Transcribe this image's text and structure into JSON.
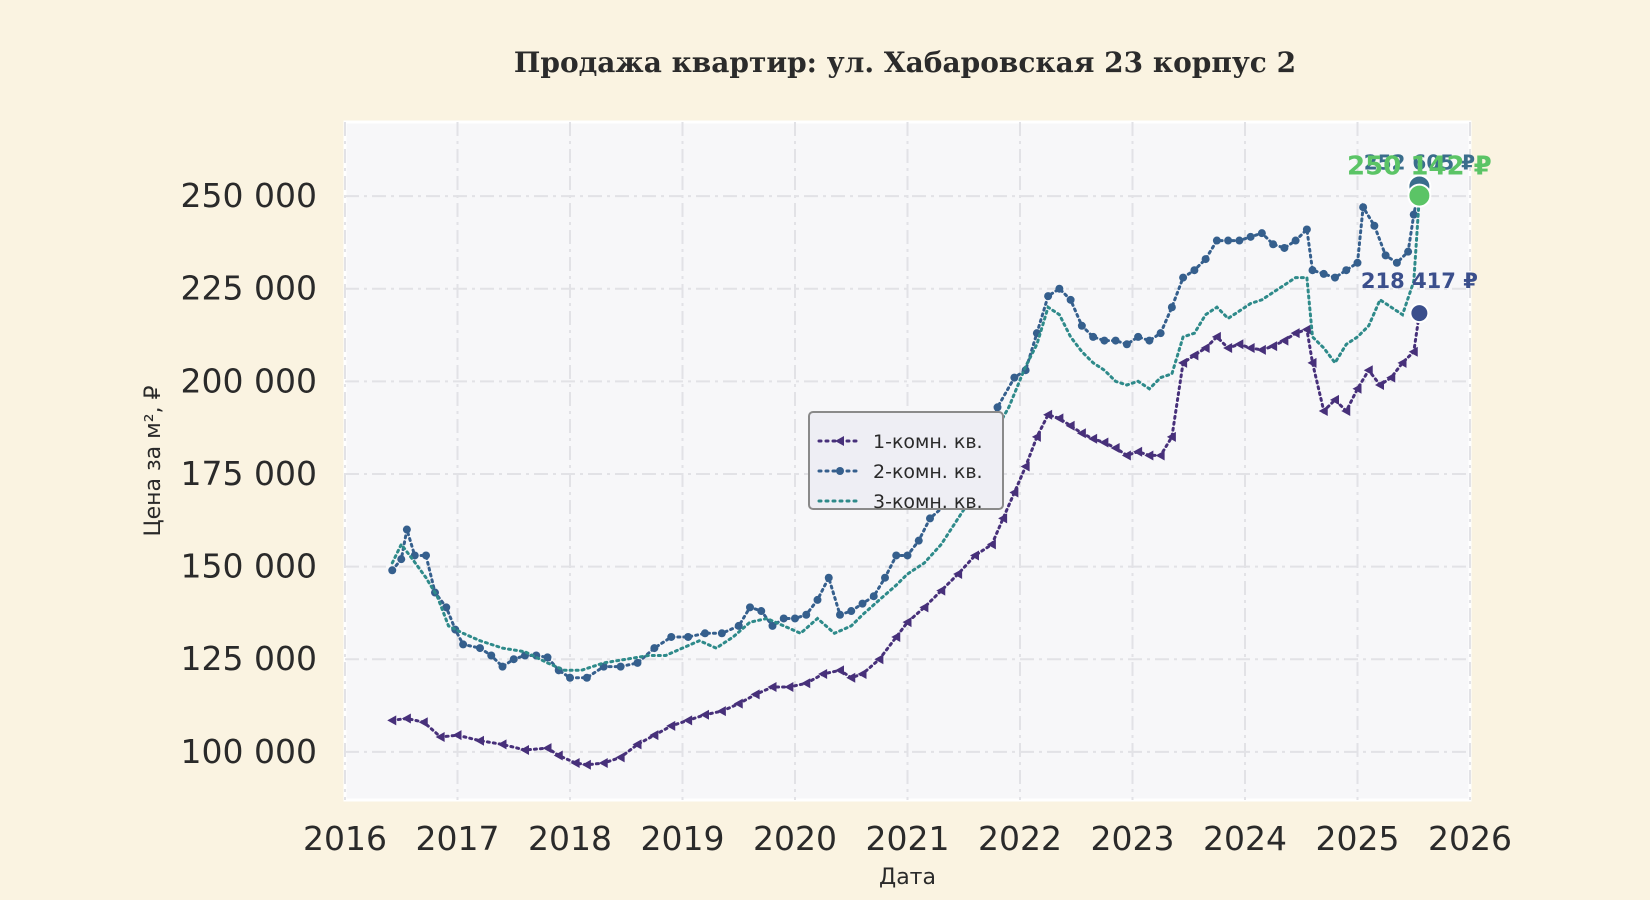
{
  "chart_data": {
    "type": "line",
    "title": "Продажа квартир: ул. Хабаровская 23 корпус 2",
    "xlabel": "Дата",
    "ylabel": "Цена за м², ₽",
    "xlim": [
      2016,
      2026
    ],
    "ylim": [
      87000,
      270000
    ],
    "x_ticks": [
      "2016",
      "2017",
      "2018",
      "2019",
      "2020",
      "2021",
      "2022",
      "2023",
      "2024",
      "2025",
      "2026"
    ],
    "y_ticks": [
      "100 000",
      "125 000",
      "150 000",
      "175 000",
      "200 000",
      "225 000",
      "250 000"
    ],
    "grid": true,
    "legend_position": "center",
    "colors": {
      "background": "#faf3e1",
      "plot_background": "#f7f7f9",
      "grid": "#e2e2e6"
    },
    "series": [
      {
        "name": "1-комн. кв.",
        "color": "#47307a",
        "marker": "triangle-left",
        "line_style": "dotted",
        "end_label": "218 417 ₽",
        "end_label_color": "#3b4f8c",
        "end_value": 218417,
        "points": [
          [
            2016.42,
            108500
          ],
          [
            2016.55,
            109000
          ],
          [
            2016.7,
            108000
          ],
          [
            2016.85,
            104000
          ],
          [
            2017.0,
            104500
          ],
          [
            2017.2,
            103000
          ],
          [
            2017.4,
            102000
          ],
          [
            2017.6,
            100500
          ],
          [
            2017.8,
            101000
          ],
          [
            2017.9,
            99000
          ],
          [
            2018.05,
            97000
          ],
          [
            2018.15,
            96500
          ],
          [
            2018.3,
            97000
          ],
          [
            2018.45,
            98500
          ],
          [
            2018.6,
            102000
          ],
          [
            2018.75,
            104500
          ],
          [
            2018.9,
            107000
          ],
          [
            2019.05,
            108500
          ],
          [
            2019.2,
            110000
          ],
          [
            2019.35,
            111000
          ],
          [
            2019.5,
            113000
          ],
          [
            2019.65,
            115500
          ],
          [
            2019.8,
            117500
          ],
          [
            2019.95,
            117500
          ],
          [
            2020.1,
            118500
          ],
          [
            2020.25,
            121000
          ],
          [
            2020.4,
            122000
          ],
          [
            2020.5,
            120000
          ],
          [
            2020.6,
            121000
          ],
          [
            2020.75,
            125000
          ],
          [
            2020.9,
            131000
          ],
          [
            2021.0,
            135000
          ],
          [
            2021.15,
            139000
          ],
          [
            2021.3,
            143500
          ],
          [
            2021.45,
            148000
          ],
          [
            2021.6,
            153000
          ],
          [
            2021.75,
            156000
          ],
          [
            2021.85,
            163000
          ],
          [
            2021.95,
            170000
          ],
          [
            2022.05,
            177000
          ],
          [
            2022.15,
            185000
          ],
          [
            2022.25,
            191000
          ],
          [
            2022.35,
            190000
          ],
          [
            2022.45,
            188000
          ],
          [
            2022.55,
            186000
          ],
          [
            2022.65,
            184500
          ],
          [
            2022.75,
            183500
          ],
          [
            2022.85,
            182000
          ],
          [
            2022.95,
            180000
          ],
          [
            2023.05,
            181000
          ],
          [
            2023.15,
            180000
          ],
          [
            2023.25,
            180000
          ],
          [
            2023.35,
            185000
          ],
          [
            2023.45,
            205000
          ],
          [
            2023.55,
            207000
          ],
          [
            2023.65,
            209000
          ],
          [
            2023.75,
            212000
          ],
          [
            2023.85,
            209000
          ],
          [
            2023.95,
            210000
          ],
          [
            2024.05,
            209000
          ],
          [
            2024.15,
            208500
          ],
          [
            2024.25,
            209500
          ],
          [
            2024.35,
            211000
          ],
          [
            2024.45,
            213000
          ],
          [
            2024.55,
            214000
          ],
          [
            2024.6,
            205000
          ],
          [
            2024.7,
            192000
          ],
          [
            2024.8,
            195000
          ],
          [
            2024.9,
            192000
          ],
          [
            2025.0,
            198000
          ],
          [
            2025.1,
            203000
          ],
          [
            2025.2,
            199000
          ],
          [
            2025.3,
            201000
          ],
          [
            2025.4,
            205000
          ],
          [
            2025.5,
            208000
          ],
          [
            2025.55,
            218417
          ]
        ]
      },
      {
        "name": "2-комн. кв.",
        "color": "#355f8d",
        "marker": "circle",
        "line_style": "dotted",
        "end_label": "252 605 ₽",
        "end_label_color": "#3a6d8c",
        "end_value": 252605,
        "points": [
          [
            2016.42,
            149000
          ],
          [
            2016.5,
            152000
          ],
          [
            2016.55,
            160000
          ],
          [
            2016.62,
            153000
          ],
          [
            2016.72,
            153000
          ],
          [
            2016.8,
            143000
          ],
          [
            2016.9,
            139000
          ],
          [
            2016.98,
            133000
          ],
          [
            2017.05,
            129000
          ],
          [
            2017.2,
            128000
          ],
          [
            2017.3,
            126000
          ],
          [
            2017.4,
            123000
          ],
          [
            2017.5,
            125000
          ],
          [
            2017.6,
            126000
          ],
          [
            2017.7,
            126000
          ],
          [
            2017.8,
            125500
          ],
          [
            2017.9,
            122000
          ],
          [
            2018.0,
            120000
          ],
          [
            2018.15,
            120000
          ],
          [
            2018.3,
            123000
          ],
          [
            2018.45,
            123000
          ],
          [
            2018.6,
            124000
          ],
          [
            2018.75,
            128000
          ],
          [
            2018.9,
            131000
          ],
          [
            2019.05,
            131000
          ],
          [
            2019.2,
            132000
          ],
          [
            2019.35,
            132000
          ],
          [
            2019.5,
            134000
          ],
          [
            2019.6,
            139000
          ],
          [
            2019.7,
            138000
          ],
          [
            2019.8,
            134000
          ],
          [
            2019.9,
            136000
          ],
          [
            2020.0,
            136000
          ],
          [
            2020.1,
            137000
          ],
          [
            2020.2,
            141000
          ],
          [
            2020.3,
            147000
          ],
          [
            2020.4,
            137000
          ],
          [
            2020.5,
            138000
          ],
          [
            2020.6,
            140000
          ],
          [
            2020.7,
            142000
          ],
          [
            2020.8,
            147000
          ],
          [
            2020.9,
            153000
          ],
          [
            2021.0,
            153000
          ],
          [
            2021.1,
            157000
          ],
          [
            2021.2,
            163000
          ],
          [
            2021.35,
            167000
          ],
          [
            2021.5,
            172000
          ],
          [
            2021.65,
            178000
          ],
          [
            2021.8,
            193000
          ],
          [
            2021.95,
            201000
          ],
          [
            2022.05,
            203000
          ],
          [
            2022.15,
            213000
          ],
          [
            2022.25,
            223000
          ],
          [
            2022.35,
            225000
          ],
          [
            2022.45,
            222000
          ],
          [
            2022.55,
            215000
          ],
          [
            2022.65,
            212000
          ],
          [
            2022.75,
            211000
          ],
          [
            2022.85,
            211000
          ],
          [
            2022.95,
            210000
          ],
          [
            2023.05,
            212000
          ],
          [
            2023.15,
            211000
          ],
          [
            2023.25,
            213000
          ],
          [
            2023.35,
            220000
          ],
          [
            2023.45,
            228000
          ],
          [
            2023.55,
            230000
          ],
          [
            2023.65,
            233000
          ],
          [
            2023.75,
            238000
          ],
          [
            2023.85,
            238000
          ],
          [
            2023.95,
            238000
          ],
          [
            2024.05,
            239000
          ],
          [
            2024.15,
            240000
          ],
          [
            2024.25,
            237000
          ],
          [
            2024.35,
            236000
          ],
          [
            2024.45,
            238000
          ],
          [
            2024.55,
            241000
          ],
          [
            2024.6,
            230000
          ],
          [
            2024.7,
            229000
          ],
          [
            2024.8,
            228000
          ],
          [
            2024.9,
            230000
          ],
          [
            2025.0,
            232000
          ],
          [
            2025.05,
            247000
          ],
          [
            2025.15,
            242000
          ],
          [
            2025.25,
            234000
          ],
          [
            2025.35,
            232000
          ],
          [
            2025.45,
            235000
          ],
          [
            2025.5,
            245000
          ],
          [
            2025.55,
            252605
          ]
        ]
      },
      {
        "name": "3-комн. кв.",
        "color": "#2e8a8a",
        "marker": "none",
        "line_style": "dotted",
        "end_label": "250 142 ₽",
        "end_label_color": "#5bc466",
        "end_value": 250142,
        "points": [
          [
            2016.42,
            151000
          ],
          [
            2016.5,
            156000
          ],
          [
            2016.6,
            152000
          ],
          [
            2016.72,
            147000
          ],
          [
            2016.82,
            142000
          ],
          [
            2016.92,
            134000
          ],
          [
            2017.05,
            132000
          ],
          [
            2017.2,
            130000
          ],
          [
            2017.4,
            128000
          ],
          [
            2017.6,
            127000
          ],
          [
            2017.8,
            124000
          ],
          [
            2017.95,
            122000
          ],
          [
            2018.1,
            122000
          ],
          [
            2018.3,
            124000
          ],
          [
            2018.5,
            125000
          ],
          [
            2018.7,
            126000
          ],
          [
            2018.85,
            126000
          ],
          [
            2019.0,
            128000
          ],
          [
            2019.15,
            130000
          ],
          [
            2019.3,
            128000
          ],
          [
            2019.45,
            131000
          ],
          [
            2019.6,
            135000
          ],
          [
            2019.75,
            136000
          ],
          [
            2019.9,
            134000
          ],
          [
            2020.05,
            132000
          ],
          [
            2020.2,
            136000
          ],
          [
            2020.35,
            132000
          ],
          [
            2020.5,
            134000
          ],
          [
            2020.6,
            137000
          ],
          [
            2020.75,
            141000
          ],
          [
            2020.9,
            145000
          ],
          [
            2021.0,
            148000
          ],
          [
            2021.15,
            151000
          ],
          [
            2021.3,
            156000
          ],
          [
            2021.45,
            163000
          ],
          [
            2021.6,
            170000
          ],
          [
            2021.75,
            185000
          ],
          [
            2021.9,
            193000
          ],
          [
            2022.05,
            204000
          ],
          [
            2022.15,
            210000
          ],
          [
            2022.25,
            220000
          ],
          [
            2022.35,
            218000
          ],
          [
            2022.45,
            212000
          ],
          [
            2022.55,
            208000
          ],
          [
            2022.65,
            205000
          ],
          [
            2022.75,
            203000
          ],
          [
            2022.85,
            200000
          ],
          [
            2022.95,
            199000
          ],
          [
            2023.05,
            200000
          ],
          [
            2023.15,
            198000
          ],
          [
            2023.25,
            201000
          ],
          [
            2023.35,
            202000
          ],
          [
            2023.45,
            212000
          ],
          [
            2023.55,
            213000
          ],
          [
            2023.65,
            218000
          ],
          [
            2023.75,
            220000
          ],
          [
            2023.85,
            217000
          ],
          [
            2023.95,
            219000
          ],
          [
            2024.05,
            221000
          ],
          [
            2024.15,
            222000
          ],
          [
            2024.25,
            224000
          ],
          [
            2024.35,
            226000
          ],
          [
            2024.45,
            228000
          ],
          [
            2024.55,
            228000
          ],
          [
            2024.6,
            212000
          ],
          [
            2024.7,
            209000
          ],
          [
            2024.8,
            205000
          ],
          [
            2024.9,
            210000
          ],
          [
            2025.0,
            212000
          ],
          [
            2025.1,
            215000
          ],
          [
            2025.2,
            222000
          ],
          [
            2025.3,
            220000
          ],
          [
            2025.4,
            218000
          ],
          [
            2025.5,
            227000
          ],
          [
            2025.55,
            250142
          ]
        ]
      }
    ]
  }
}
